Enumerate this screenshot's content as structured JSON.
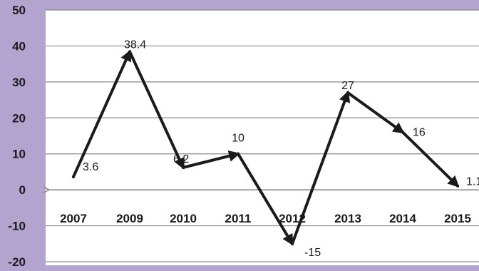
{
  "chart_data": {
    "type": "line",
    "categories": [
      "2007",
      "2009",
      "2010",
      "2011",
      "2012",
      "2013",
      "2014",
      "2015"
    ],
    "series": [
      {
        "values": [
          3.6,
          38.4,
          6.2,
          10,
          -15,
          27,
          16,
          1.1
        ]
      }
    ],
    "data_labels": [
      "3.6",
      "38.4",
      "6.2",
      "10",
      "-15",
      "27",
      "16",
      "1.1"
    ],
    "y_ticks": [
      "-20",
      "-10",
      "0",
      "10",
      "20",
      "30",
      "40",
      "50"
    ],
    "ylim": [
      -20,
      50
    ],
    "grid": true,
    "legend": "none"
  },
  "colors": {
    "background": "#b3a3cf",
    "plot_area": "#ffffff",
    "line": "#1a1a1a",
    "gridline": "#8c8c8c"
  }
}
